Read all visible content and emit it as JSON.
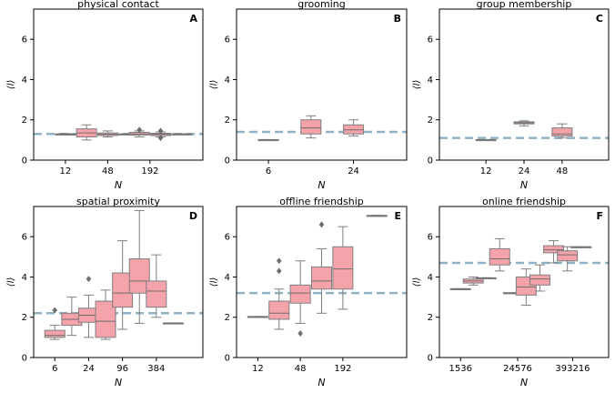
{
  "figure": {
    "style": {
      "box_fill": "#f4a3aa",
      "box_edge": "#7f7f7f",
      "median_color": "#6e6e6e",
      "refline_color": "#8fb2c4"
    },
    "ylabel": "⟨l⟩",
    "xlabel": "N"
  },
  "chart_data": [
    {
      "type": "box",
      "letter": "A",
      "title": "physical contact",
      "xlabel": "N",
      "ylabel": "⟨l⟩",
      "ylim": [
        0,
        7.5
      ],
      "yticks": [
        0,
        2,
        4,
        6
      ],
      "ytick_labels": [
        "0",
        "2",
        "4",
        "6"
      ],
      "xlim": [
        0,
        8
      ],
      "xticks": [
        1.5,
        3.5,
        5.5
      ],
      "xtick_labels": [
        "12",
        "48",
        "192"
      ],
      "reference_line": 1.3,
      "boxes": [
        {
          "x": 1.5,
          "whislo": 1.25,
          "q1": 1.27,
          "med": 1.28,
          "q3": 1.3,
          "whishi": 1.32,
          "fliers": []
        },
        {
          "x": 2.5,
          "whislo": 1.0,
          "q1": 1.15,
          "med": 1.35,
          "q3": 1.55,
          "whishi": 1.75,
          "fliers": []
        },
        {
          "x": 3.5,
          "whislo": 1.15,
          "q1": 1.22,
          "med": 1.28,
          "q3": 1.35,
          "whishi": 1.45,
          "fliers": []
        },
        {
          "x": 4.5,
          "whislo": 1.3,
          "q1": 1.3,
          "med": 1.3,
          "q3": 1.3,
          "whishi": 1.3,
          "fliers": []
        },
        {
          "x": 5.0,
          "whislo": 1.15,
          "q1": 1.25,
          "med": 1.3,
          "q3": 1.38,
          "whishi": 1.45,
          "fliers": [
            1.5
          ]
        },
        {
          "x": 6.0,
          "whislo": 1.15,
          "q1": 1.22,
          "med": 1.28,
          "q3": 1.33,
          "whishi": 1.4,
          "fliers": [
            1.1,
            1.45
          ]
        },
        {
          "x": 7.0,
          "whislo": 1.28,
          "q1": 1.28,
          "med": 1.3,
          "q3": 1.3,
          "whishi": 1.3,
          "fliers": []
        }
      ]
    },
    {
      "type": "box",
      "letter": "B",
      "title": "grooming",
      "xlabel": "N",
      "ylabel": "⟨l⟩",
      "ylim": [
        0,
        7.5
      ],
      "yticks": [
        0,
        2,
        4,
        6
      ],
      "ytick_labels": [
        "0",
        "2",
        "4",
        "6"
      ],
      "xlim": [
        0,
        8
      ],
      "xticks": [
        1.5,
        5.5
      ],
      "xtick_labels": [
        "6",
        "24"
      ],
      "reference_line": 1.4,
      "boxes": [
        {
          "x": 1.5,
          "whislo": 1.0,
          "q1": 1.0,
          "med": 1.0,
          "q3": 1.02,
          "whishi": 1.02,
          "fliers": []
        },
        {
          "x": 3.5,
          "whislo": 1.1,
          "q1": 1.3,
          "med": 1.6,
          "q3": 2.0,
          "whishi": 2.2,
          "fliers": []
        },
        {
          "x": 5.5,
          "whislo": 1.2,
          "q1": 1.3,
          "med": 1.5,
          "q3": 1.75,
          "whishi": 2.0,
          "fliers": []
        }
      ]
    },
    {
      "type": "box",
      "letter": "C",
      "title": "group membership",
      "xlabel": "N",
      "ylabel": "⟨l⟩",
      "ylim": [
        0,
        7.5
      ],
      "yticks": [
        0,
        2,
        4,
        6
      ],
      "ytick_labels": [
        "0",
        "2",
        "4",
        "6"
      ],
      "xlim": [
        0,
        8
      ],
      "xticks": [
        2.2,
        4.0,
        5.8
      ],
      "xtick_labels": [
        "12",
        "24",
        "48"
      ],
      "reference_line": 1.1,
      "boxes": [
        {
          "x": 2.2,
          "whislo": 1.0,
          "q1": 1.0,
          "med": 1.0,
          "q3": 1.02,
          "whishi": 1.02,
          "fliers": []
        },
        {
          "x": 4.0,
          "whislo": 1.7,
          "q1": 1.8,
          "med": 1.85,
          "q3": 1.9,
          "whishi": 1.95,
          "fliers": []
        },
        {
          "x": 5.8,
          "whislo": 1.1,
          "q1": 1.2,
          "med": 1.3,
          "q3": 1.6,
          "whishi": 1.8,
          "fliers": []
        }
      ]
    },
    {
      "type": "box",
      "letter": "D",
      "title": "spatial proximity",
      "xlabel": "N",
      "ylabel": "⟨l⟩",
      "ylim": [
        0,
        7.5
      ],
      "yticks": [
        0,
        2,
        4,
        6
      ],
      "ytick_labels": [
        "0",
        "2",
        "4",
        "6"
      ],
      "xlim": [
        0,
        8
      ],
      "xticks": [
        1.0,
        2.6,
        4.2,
        5.8
      ],
      "xtick_labels": [
        "6",
        "24",
        "96",
        "384"
      ],
      "reference_line": 2.2,
      "boxes": [
        {
          "x": 1.0,
          "whislo": 0.9,
          "q1": 1.0,
          "med": 1.1,
          "q3": 1.35,
          "whishi": 1.6,
          "fliers": [
            2.35
          ]
        },
        {
          "x": 1.8,
          "whislo": 1.1,
          "q1": 1.6,
          "med": 1.9,
          "q3": 2.2,
          "whishi": 3.0,
          "fliers": []
        },
        {
          "x": 2.6,
          "whislo": 1.0,
          "q1": 1.75,
          "med": 2.1,
          "q3": 2.45,
          "whishi": 3.1,
          "fliers": [
            3.9
          ]
        },
        {
          "x": 3.4,
          "whislo": 0.9,
          "q1": 1.0,
          "med": 1.8,
          "q3": 2.8,
          "whishi": 3.35,
          "fliers": []
        },
        {
          "x": 4.2,
          "whislo": 1.4,
          "q1": 2.5,
          "med": 3.2,
          "q3": 4.2,
          "whishi": 5.8,
          "fliers": []
        },
        {
          "x": 5.0,
          "whislo": 1.7,
          "q1": 3.2,
          "med": 3.8,
          "q3": 4.9,
          "whishi": 7.3,
          "fliers": []
        },
        {
          "x": 5.8,
          "whislo": 2.0,
          "q1": 2.5,
          "med": 3.3,
          "q3": 3.8,
          "whishi": 5.1,
          "fliers": []
        },
        {
          "x": 6.6,
          "whislo": 1.7,
          "q1": 1.7,
          "med": 1.7,
          "q3": 1.72,
          "whishi": 1.72,
          "fliers": []
        }
      ]
    },
    {
      "type": "box",
      "letter": "E",
      "title": "offline friendship",
      "xlabel": "N",
      "ylabel": "⟨l⟩",
      "ylim": [
        0,
        7.5
      ],
      "yticks": [
        0,
        2,
        4,
        6
      ],
      "ytick_labels": [
        "0",
        "2",
        "4",
        "6"
      ],
      "xlim": [
        0,
        8
      ],
      "xticks": [
        1.0,
        3.0,
        5.0
      ],
      "xtick_labels": [
        "12",
        "48",
        "192"
      ],
      "reference_line": 3.2,
      "boxes": [
        {
          "x": 1.0,
          "whislo": 2.02,
          "q1": 2.02,
          "med": 2.03,
          "q3": 2.04,
          "whishi": 2.04,
          "fliers": []
        },
        {
          "x": 2.0,
          "whislo": 1.4,
          "q1": 1.9,
          "med": 2.2,
          "q3": 2.8,
          "whishi": 3.4,
          "fliers": [
            4.3,
            4.8
          ]
        },
        {
          "x": 3.0,
          "whislo": 1.7,
          "q1": 2.7,
          "med": 3.2,
          "q3": 3.6,
          "whishi": 4.8,
          "fliers": [
            1.2
          ]
        },
        {
          "x": 4.0,
          "whislo": 2.2,
          "q1": 3.4,
          "med": 3.8,
          "q3": 4.5,
          "whishi": 5.4,
          "fliers": [
            6.6
          ]
        },
        {
          "x": 5.0,
          "whislo": 2.4,
          "q1": 3.4,
          "med": 4.4,
          "q3": 5.5,
          "whishi": 6.5,
          "fliers": []
        },
        {
          "x": 6.6,
          "whislo": 7.05,
          "q1": 7.05,
          "med": 7.05,
          "q3": 7.06,
          "whishi": 7.06,
          "fliers": []
        }
      ]
    },
    {
      "type": "box",
      "letter": "F",
      "title": "online friendship",
      "xlabel": "N",
      "ylabel": "⟨l⟩",
      "ylim": [
        0,
        7.5
      ],
      "yticks": [
        0,
        2,
        4,
        6
      ],
      "ytick_labels": [
        "0",
        "2",
        "4",
        "6"
      ],
      "xlim": [
        0,
        8
      ],
      "xticks": [
        1.0,
        3.7,
        6.3
      ],
      "xtick_labels": [
        "1536",
        "24576",
        "393216"
      ],
      "reference_line": 4.7,
      "boxes": [
        {
          "x": 1.0,
          "whislo": 3.4,
          "q1": 3.4,
          "med": 3.4,
          "q3": 3.42,
          "whishi": 3.42,
          "fliers": []
        },
        {
          "x": 1.6,
          "whislo": 3.6,
          "q1": 3.7,
          "med": 3.8,
          "q3": 3.9,
          "whishi": 4.0,
          "fliers": []
        },
        {
          "x": 2.2,
          "whislo": 3.95,
          "q1": 3.95,
          "med": 3.95,
          "q3": 3.96,
          "whishi": 3.96,
          "fliers": []
        },
        {
          "x": 2.85,
          "whislo": 4.3,
          "q1": 4.6,
          "med": 4.9,
          "q3": 5.4,
          "whishi": 5.9,
          "fliers": []
        },
        {
          "x": 3.5,
          "whislo": 3.2,
          "q1": 3.2,
          "med": 3.2,
          "q3": 3.22,
          "whishi": 3.22,
          "fliers": []
        },
        {
          "x": 4.1,
          "whislo": 2.6,
          "q1": 3.1,
          "med": 3.5,
          "q3": 4.0,
          "whishi": 4.4,
          "fliers": []
        },
        {
          "x": 4.75,
          "whislo": 3.3,
          "q1": 3.6,
          "med": 3.9,
          "q3": 4.1,
          "whishi": 4.6,
          "fliers": []
        },
        {
          "x": 5.4,
          "whislo": 4.7,
          "q1": 5.2,
          "med": 5.35,
          "q3": 5.55,
          "whishi": 5.8,
          "fliers": []
        },
        {
          "x": 6.05,
          "whislo": 4.3,
          "q1": 4.8,
          "med": 5.1,
          "q3": 5.3,
          "whishi": 5.5,
          "fliers": []
        },
        {
          "x": 6.7,
          "whislo": 5.45,
          "q1": 5.45,
          "med": 5.5,
          "q3": 5.5,
          "whishi": 5.5,
          "fliers": []
        }
      ]
    }
  ]
}
